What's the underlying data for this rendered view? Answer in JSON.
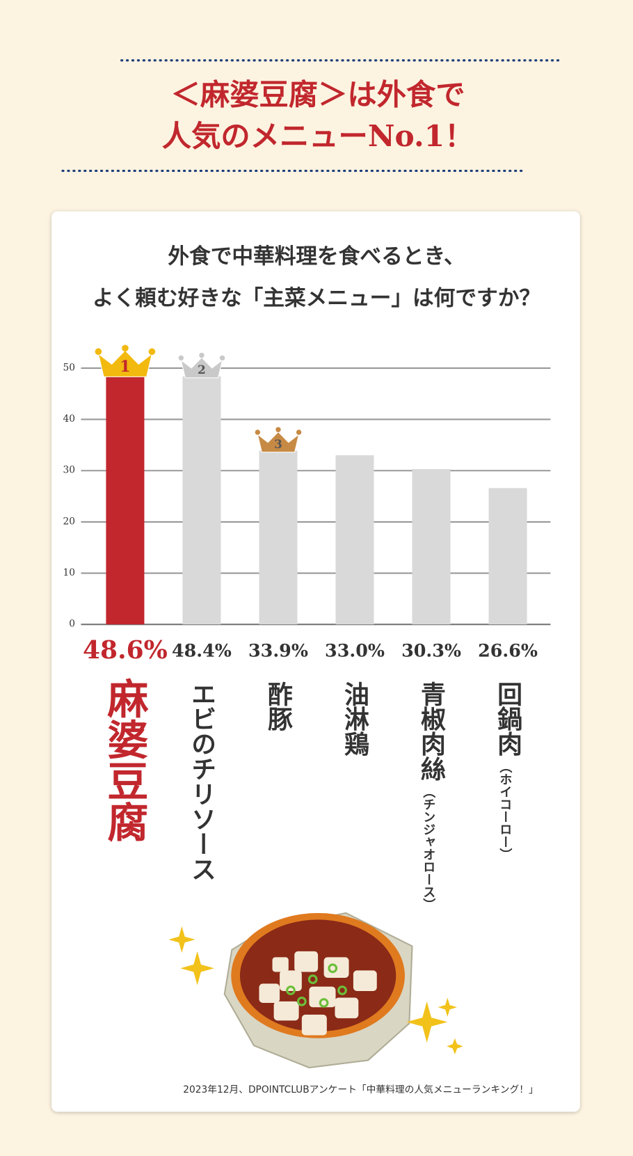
{
  "header": {
    "title_lines": [
      "＜麻婆豆腐＞は外食で",
      "人気のメニューNo.1！"
    ]
  },
  "chart_data": {
    "type": "bar",
    "question_lines": [
      "外食で中華料理を食べるとき、",
      "よく頼む好きな「主菜メニュー」は何ですか？"
    ],
    "categories": [
      "麻婆豆腐",
      "エビのチリソース",
      "酢豚",
      "油淋鶏",
      "青椒肉絲",
      "回鍋肉"
    ],
    "readings": [
      null,
      null,
      null,
      null,
      "（チンジャオロース）",
      "（ホイコーロー）"
    ],
    "values": [
      48.6,
      48.4,
      33.9,
      33.0,
      30.3,
      26.6
    ],
    "value_labels": [
      "48.6%",
      "48.4%",
      "33.9%",
      "33.0%",
      "30.3%",
      "26.6%"
    ],
    "colors": [
      "#c1272d",
      "#d9d9d9",
      "#d9d9d9",
      "#d9d9d9",
      "#d9d9d9",
      "#d9d9d9"
    ],
    "ranks": [
      "1",
      "2",
      "3",
      null,
      null,
      null
    ],
    "ylim": [
      0,
      50
    ],
    "yticks": [
      0,
      10,
      20,
      30,
      40,
      50
    ],
    "grid": true,
    "footnote": "2023年12月、DPOINTCLUBアンケート「中華料理の人気メニューランキング！」"
  }
}
